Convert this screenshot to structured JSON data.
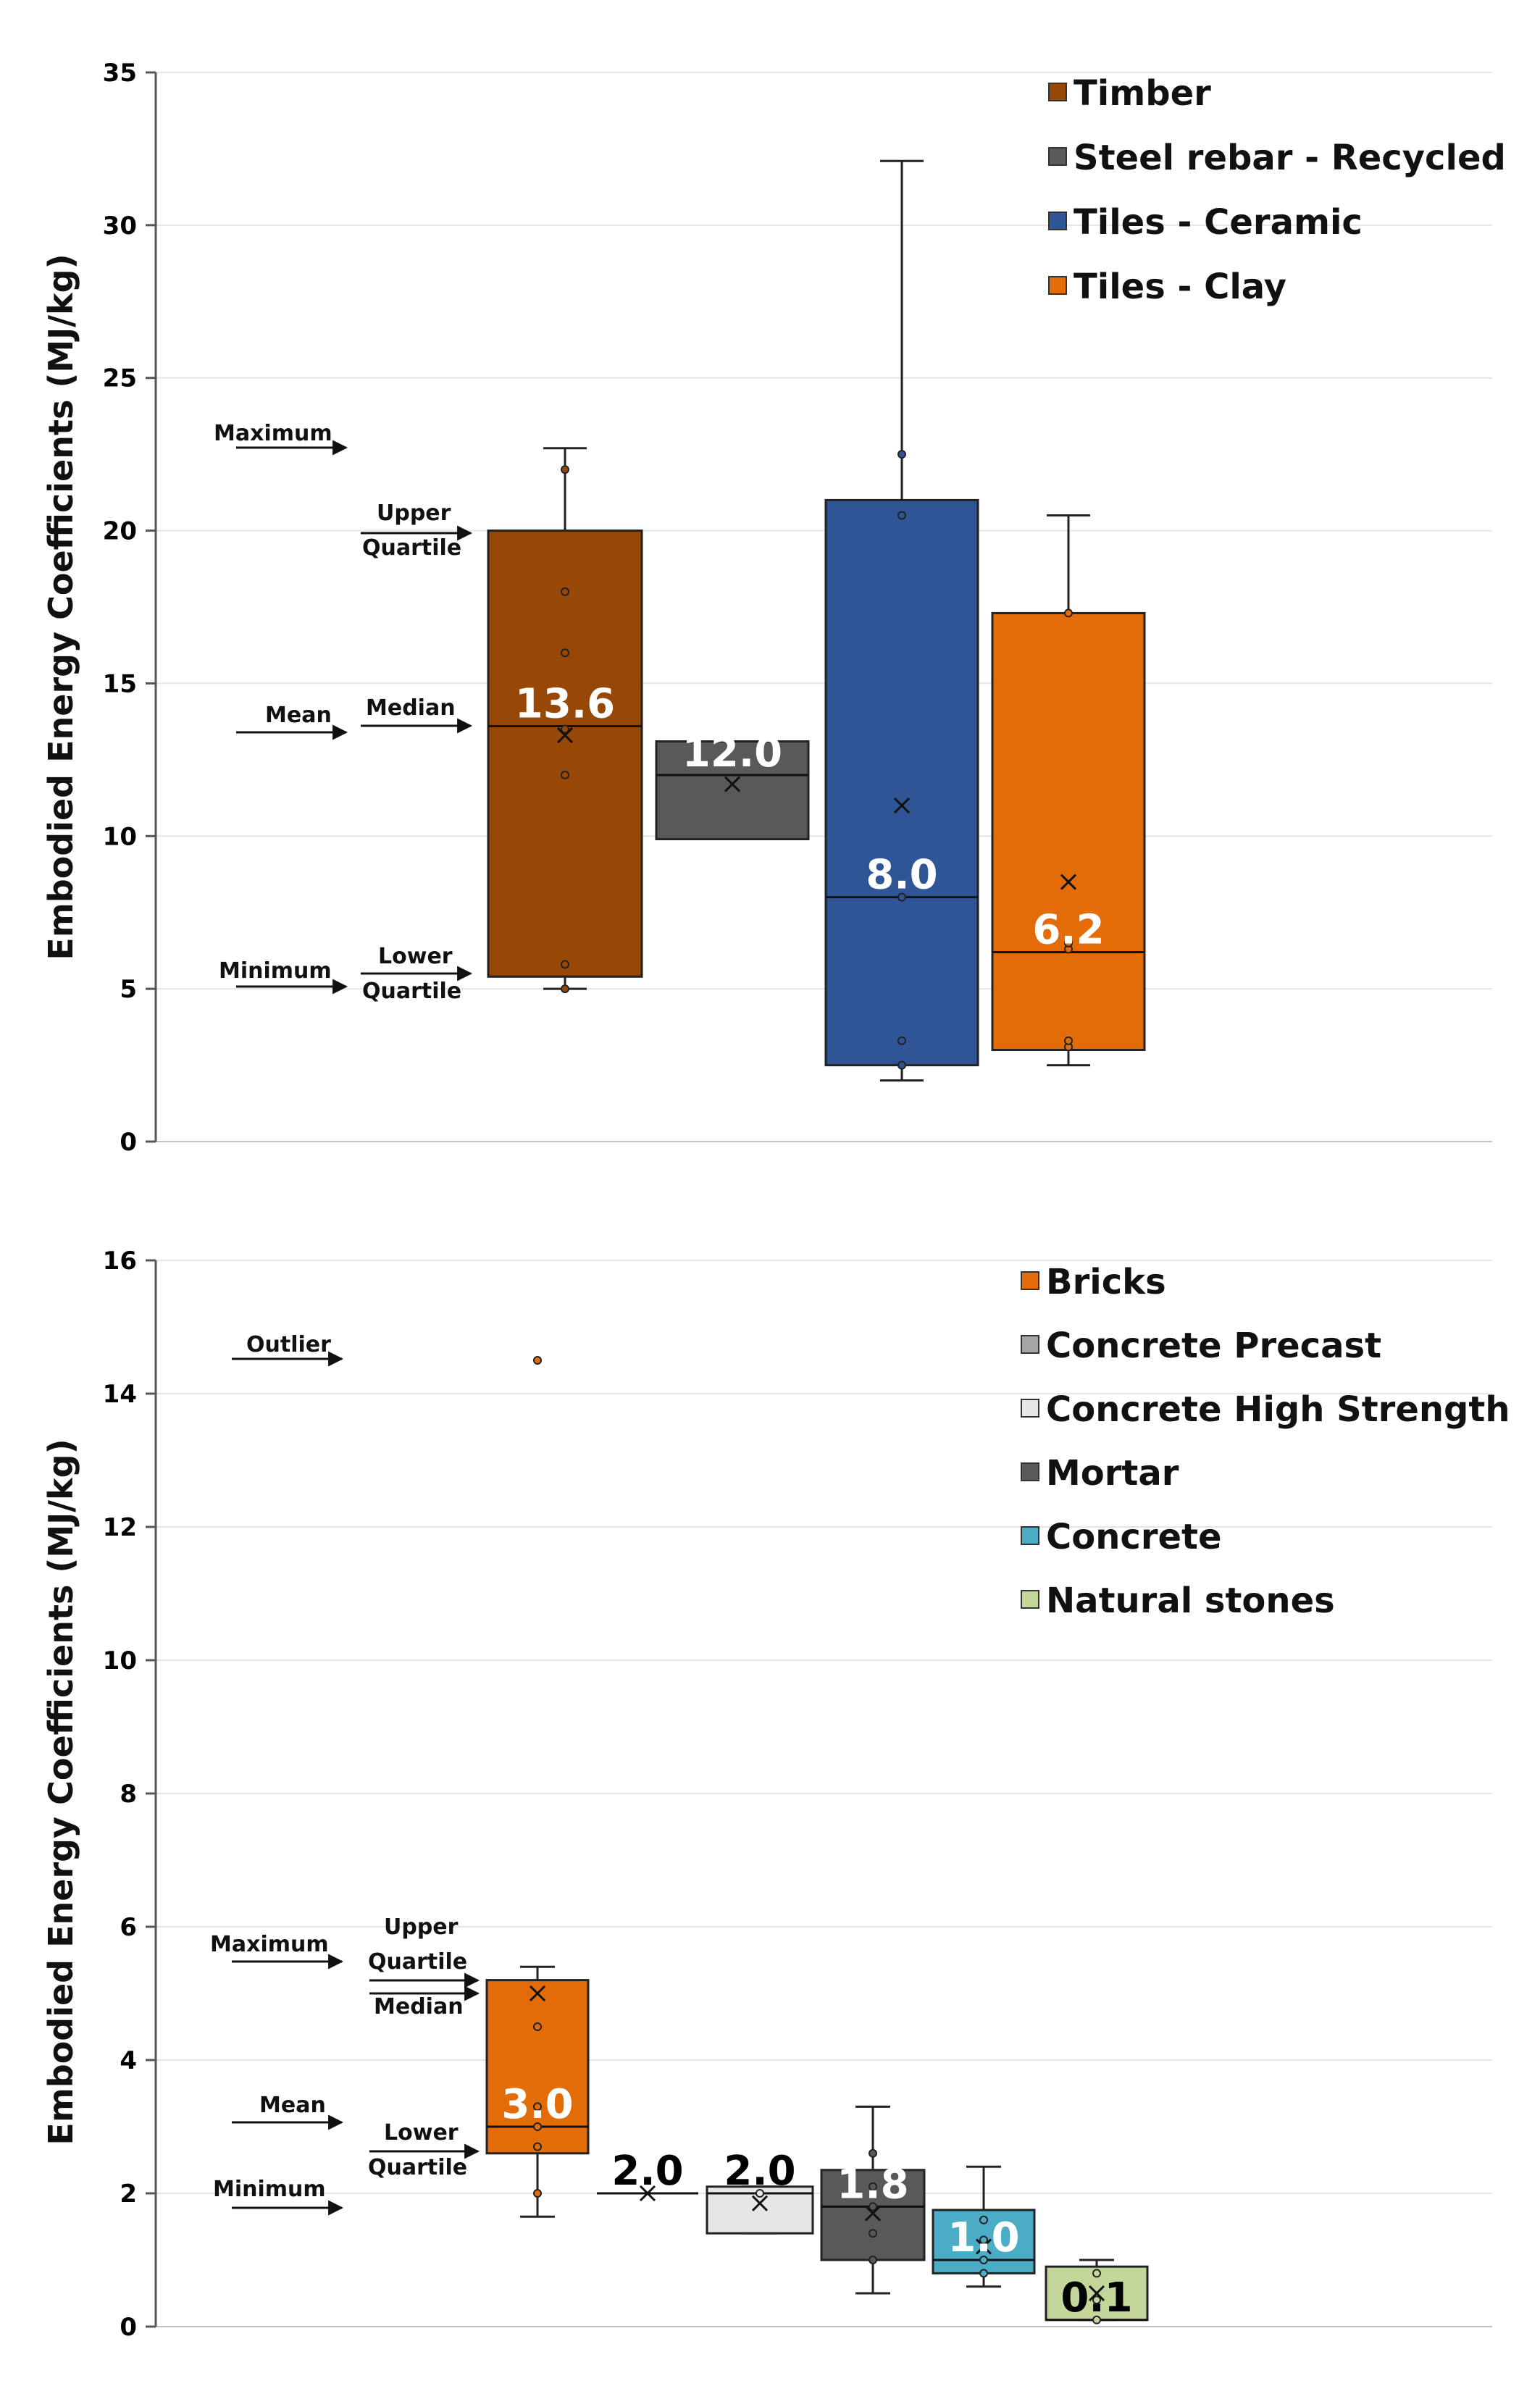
{
  "chart_data": [
    {
      "type": "box",
      "ylabel": "Embodied Energy Coefficients (MJ/kg)",
      "ylim": [
        0,
        35
      ],
      "yticks": [
        "0",
        "5",
        "10",
        "15",
        "20",
        "25",
        "30",
        "35"
      ],
      "grid": true,
      "legend_position": "top-right",
      "series": [
        {
          "name": "Timber",
          "color": "#974706",
          "min": 5.0,
          "q1": 5.4,
          "median": 13.6,
          "q3": 20.0,
          "max": 22.7,
          "mean": 13.3,
          "points": [
            5.0,
            5.8,
            12.0,
            13.5,
            16.0,
            18.0,
            22.0
          ],
          "median_label": "13.6",
          "median_label_color": "#ffffff"
        },
        {
          "name": "Steel rebar - Recycled",
          "color": "#595959",
          "min": 9.9,
          "q1": 9.9,
          "median": 12.0,
          "q3": 13.1,
          "max": 13.1,
          "mean": 11.7,
          "points": [],
          "median_label": "12.0",
          "median_label_color": "#ffffff"
        },
        {
          "name": "Tiles - Ceramic",
          "color": "#2f5597",
          "min": 2.0,
          "q1": 2.5,
          "median": 8.0,
          "q3": 21.0,
          "max": 32.1,
          "mean": 11.0,
          "points": [
            2.5,
            3.3,
            8.0,
            20.5,
            22.5
          ],
          "median_label": "8.0",
          "median_label_color": "#ffffff"
        },
        {
          "name": "Tiles - Clay",
          "color": "#e36c09",
          "min": 2.5,
          "q1": 3.0,
          "median": 6.2,
          "q3": 17.3,
          "max": 20.5,
          "mean": 8.5,
          "points": [
            3.1,
            3.3,
            6.3,
            6.5,
            17.3
          ],
          "median_label": "6.2",
          "median_label_color": "#ffffff"
        }
      ],
      "annotations": {
        "maximum": "Maximum",
        "upper_quartile_1": "Upper",
        "upper_quartile_2": "Quartile",
        "mean": "Mean",
        "median": "Median",
        "minimum": "Minimum",
        "lower_quartile_1": "Lower",
        "lower_quartile_2": "Quartile"
      }
    },
    {
      "type": "box",
      "ylabel": "Embodied Energy Coefficients (MJ/kg)",
      "ylim": [
        0,
        16
      ],
      "yticks": [
        "0",
        "2",
        "4",
        "6",
        "8",
        "10",
        "12",
        "14",
        "16"
      ],
      "grid": true,
      "legend_position": "top-right",
      "series": [
        {
          "name": "Bricks",
          "color": "#e36c09",
          "min": 1.65,
          "q1": 2.6,
          "median": 3.0,
          "q3": 5.2,
          "max": 5.4,
          "mean": 5.0,
          "points": [
            2.0,
            2.7,
            3.0,
            3.3,
            4.5,
            14.5
          ],
          "median_label": "3.0",
          "median_label_color": "#ffffff"
        },
        {
          "name": "Concrete Precast",
          "color": "#a6a6a6",
          "min": 2.0,
          "q1": 2.0,
          "median": 2.0,
          "q3": 2.0,
          "max": 2.0,
          "mean": 2.0,
          "points": [],
          "median_label": "2.0",
          "median_label_color": "#000000"
        },
        {
          "name": "Concrete High Strength",
          "color": "#e7e6e6",
          "min": 1.4,
          "q1": 1.4,
          "median": 2.0,
          "q3": 2.1,
          "max": 2.1,
          "mean": 1.85,
          "points": [
            2.0
          ],
          "median_label": "2.0",
          "median_label_color": "#000000"
        },
        {
          "name": "Mortar",
          "color": "#595959",
          "min": 0.5,
          "q1": 1.0,
          "median": 1.8,
          "q3": 2.35,
          "max": 3.3,
          "mean": 1.7,
          "points": [
            1.0,
            1.4,
            1.8,
            2.1,
            2.6
          ],
          "median_label": "1.8",
          "median_label_color": "#ffffff"
        },
        {
          "name": "Concrete",
          "color": "#4bacc6",
          "min": 0.6,
          "q1": 0.8,
          "median": 1.0,
          "q3": 1.75,
          "max": 2.4,
          "mean": 1.2,
          "points": [
            0.8,
            1.0,
            1.3,
            1.6
          ],
          "median_label": "1.0",
          "median_label_color": "#ffffff"
        },
        {
          "name": "Natural stones",
          "color": "#c4d79b",
          "min": 0.1,
          "q1": 0.1,
          "median": 0.1,
          "q3": 0.9,
          "max": 1.0,
          "mean": 0.5,
          "points": [
            0.1,
            0.4,
            0.8
          ],
          "median_label": "0.1",
          "median_label_color": "#000000"
        }
      ],
      "annotations": {
        "outlier": "Outlier",
        "maximum": "Maximum",
        "upper_quartile_1": "Upper",
        "upper_quartile_2": "Quartile",
        "median": "Median",
        "mean": "Mean",
        "minimum": "Minimum",
        "lower_quartile_1": "Lower",
        "lower_quartile_2": "Quartile"
      }
    }
  ]
}
